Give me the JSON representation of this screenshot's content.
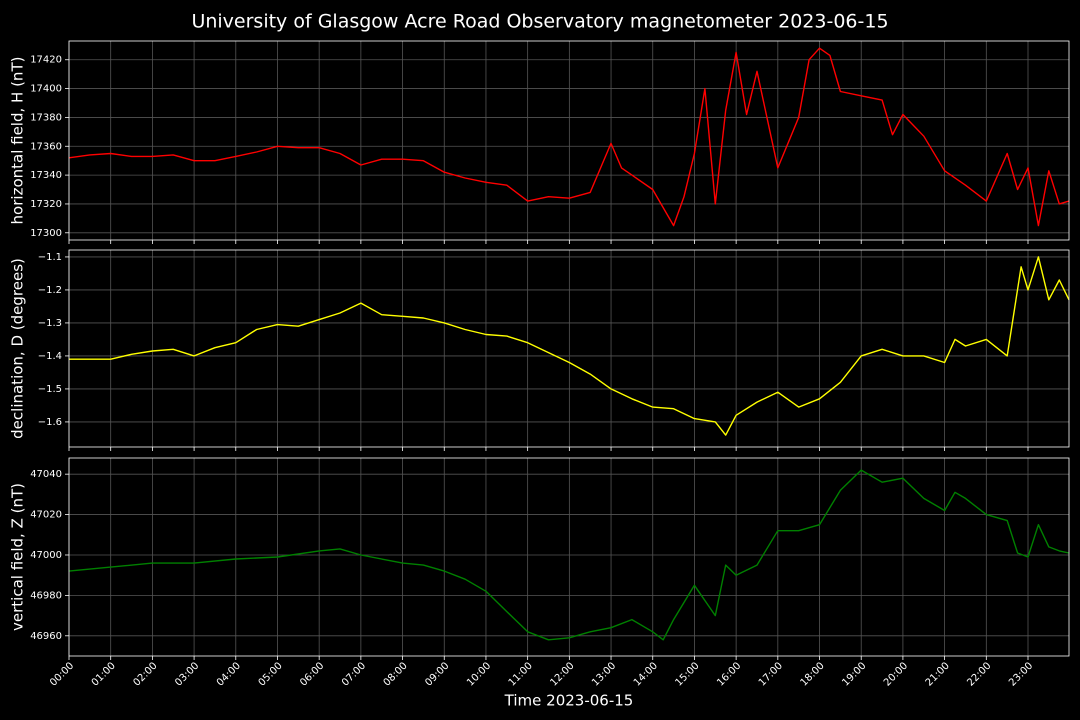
{
  "title": "University of Glasgow Acre Road Observatory magnetometer 2023-06-15",
  "chart_data": [
    {
      "type": "line",
      "ylabel": "horizontal field, H (nT)",
      "color": "#ff0000",
      "grid": true,
      "xlim": [
        "00:00",
        "23:59"
      ],
      "ylim": [
        17295,
        17433
      ],
      "xticks": [
        "00:00",
        "01:00",
        "02:00",
        "03:00",
        "04:00",
        "05:00",
        "06:00",
        "07:00",
        "08:00",
        "09:00",
        "10:00",
        "11:00",
        "12:00",
        "13:00",
        "14:00",
        "15:00",
        "16:00",
        "17:00",
        "18:00",
        "19:00",
        "20:00",
        "21:00",
        "22:00",
        "23:00"
      ],
      "yticks": [
        17300,
        17320,
        17340,
        17360,
        17380,
        17400,
        17420
      ],
      "x": [
        "00:00",
        "00:30",
        "01:00",
        "01:30",
        "02:00",
        "02:30",
        "03:00",
        "03:30",
        "04:00",
        "04:30",
        "05:00",
        "05:30",
        "06:00",
        "06:30",
        "07:00",
        "07:30",
        "08:00",
        "08:30",
        "09:00",
        "09:30",
        "10:00",
        "10:30",
        "11:00",
        "11:30",
        "12:00",
        "12:30",
        "13:00",
        "13:15",
        "13:30",
        "14:00",
        "14:30",
        "14:45",
        "15:00",
        "15:15",
        "15:30",
        "15:45",
        "16:00",
        "16:15",
        "16:30",
        "17:00",
        "17:30",
        "17:45",
        "18:00",
        "18:15",
        "18:30",
        "19:00",
        "19:30",
        "19:45",
        "20:00",
        "20:30",
        "21:00",
        "21:30",
        "22:00",
        "22:30",
        "22:45",
        "23:00",
        "23:15",
        "23:30",
        "23:45",
        "23:59"
      ],
      "values": [
        17352,
        17354,
        17355,
        17353,
        17353,
        17354,
        17350,
        17350,
        17353,
        17356,
        17360,
        17359,
        17359,
        17355,
        17347,
        17351,
        17351,
        17350,
        17342,
        17338,
        17335,
        17333,
        17322,
        17325,
        17324,
        17328,
        17362,
        17345,
        17340,
        17330,
        17305,
        17325,
        17355,
        17400,
        17320,
        17385,
        17425,
        17382,
        17412,
        17345,
        17380,
        17420,
        17428,
        17423,
        17398,
        17395,
        17392,
        17368,
        17382,
        17367,
        17343,
        17333,
        17322,
        17355,
        17330,
        17345,
        17305,
        17343,
        17320,
        17322
      ]
    },
    {
      "type": "line",
      "ylabel": "declination, D (degrees)",
      "color": "#ffff00",
      "grid": true,
      "xlim": [
        "00:00",
        "23:59"
      ],
      "ylim": [
        -1.676,
        -1.079
      ],
      "xticks": [
        "00:00",
        "01:00",
        "02:00",
        "03:00",
        "04:00",
        "05:00",
        "06:00",
        "07:00",
        "08:00",
        "09:00",
        "10:00",
        "11:00",
        "12:00",
        "13:00",
        "14:00",
        "15:00",
        "16:00",
        "17:00",
        "18:00",
        "19:00",
        "20:00",
        "21:00",
        "22:00",
        "23:00"
      ],
      "yticks": [
        {
          "value": -1.6,
          "label": "−1.6"
        },
        {
          "value": -1.5,
          "label": "−1.5"
        },
        {
          "value": -1.4,
          "label": "−1.4"
        },
        {
          "value": -1.3,
          "label": "−1.3"
        },
        {
          "value": -1.2,
          "label": "−1.2"
        },
        {
          "value": -1.1,
          "label": "−1.1"
        }
      ],
      "x": [
        "00:00",
        "01:00",
        "01:30",
        "02:00",
        "02:30",
        "03:00",
        "03:30",
        "04:00",
        "04:30",
        "05:00",
        "05:30",
        "06:00",
        "06:30",
        "07:00",
        "07:30",
        "08:00",
        "08:30",
        "09:00",
        "09:30",
        "10:00",
        "10:30",
        "11:00",
        "11:30",
        "12:00",
        "12:30",
        "13:00",
        "13:30",
        "14:00",
        "14:30",
        "15:00",
        "15:30",
        "15:45",
        "16:00",
        "16:30",
        "17:00",
        "17:30",
        "18:00",
        "18:30",
        "19:00",
        "19:30",
        "20:00",
        "20:30",
        "21:00",
        "21:15",
        "21:30",
        "22:00",
        "22:30",
        "22:50",
        "23:00",
        "23:15",
        "23:30",
        "23:45",
        "23:59"
      ],
      "values": [
        -1.41,
        -1.41,
        -1.395,
        -1.385,
        -1.38,
        -1.4,
        -1.375,
        -1.36,
        -1.32,
        -1.305,
        -1.31,
        -1.29,
        -1.27,
        -1.24,
        -1.275,
        -1.28,
        -1.285,
        -1.3,
        -1.32,
        -1.335,
        -1.34,
        -1.36,
        -1.39,
        -1.42,
        -1.455,
        -1.5,
        -1.53,
        -1.555,
        -1.56,
        -1.59,
        -1.6,
        -1.64,
        -1.58,
        -1.54,
        -1.51,
        -1.555,
        -1.53,
        -1.48,
        -1.4,
        -1.38,
        -1.4,
        -1.4,
        -1.42,
        -1.35,
        -1.37,
        -1.35,
        -1.4,
        -1.13,
        -1.2,
        -1.1,
        -1.23,
        -1.17,
        -1.23
      ]
    },
    {
      "type": "line",
      "ylabel": "vertical field, Z (nT)",
      "xlabel": "Time 2023-06-15",
      "color": "#008000",
      "grid": true,
      "xlim": [
        "00:00",
        "23:59"
      ],
      "ylim": [
        46950,
        47048
      ],
      "xticks": [
        "00:00",
        "01:00",
        "02:00",
        "03:00",
        "04:00",
        "05:00",
        "06:00",
        "07:00",
        "08:00",
        "09:00",
        "10:00",
        "11:00",
        "12:00",
        "13:00",
        "14:00",
        "15:00",
        "16:00",
        "17:00",
        "18:00",
        "19:00",
        "20:00",
        "21:00",
        "22:00",
        "23:00"
      ],
      "yticks": [
        46960,
        46980,
        47000,
        47020,
        47040
      ],
      "x": [
        "00:00",
        "01:00",
        "02:00",
        "03:00",
        "04:00",
        "05:00",
        "06:00",
        "06:30",
        "07:00",
        "08:00",
        "08:30",
        "09:00",
        "09:30",
        "10:00",
        "10:30",
        "11:00",
        "11:30",
        "12:00",
        "12:30",
        "13:00",
        "13:30",
        "14:00",
        "14:15",
        "14:30",
        "15:00",
        "15:30",
        "15:45",
        "16:00",
        "16:30",
        "17:00",
        "17:30",
        "18:00",
        "18:30",
        "19:00",
        "19:30",
        "20:00",
        "20:30",
        "21:00",
        "21:15",
        "21:30",
        "22:00",
        "22:30",
        "22:45",
        "23:00",
        "23:15",
        "23:30",
        "23:45",
        "23:59"
      ],
      "values": [
        46992,
        46994,
        46996,
        46996,
        46998,
        46999,
        47002,
        47003,
        47000,
        46996,
        46995,
        46992,
        46988,
        46982,
        46972,
        46962,
        46958,
        46959,
        46962,
        46964,
        46968,
        46962,
        46958,
        46968,
        46985,
        46970,
        46995,
        46990,
        46995,
        47012,
        47012,
        47015,
        47032,
        47042,
        47036,
        47038,
        47028,
        47022,
        47031,
        47028,
        47020,
        47017,
        47001,
        46999,
        47015,
        47004,
        47002,
        47001
      ]
    }
  ]
}
